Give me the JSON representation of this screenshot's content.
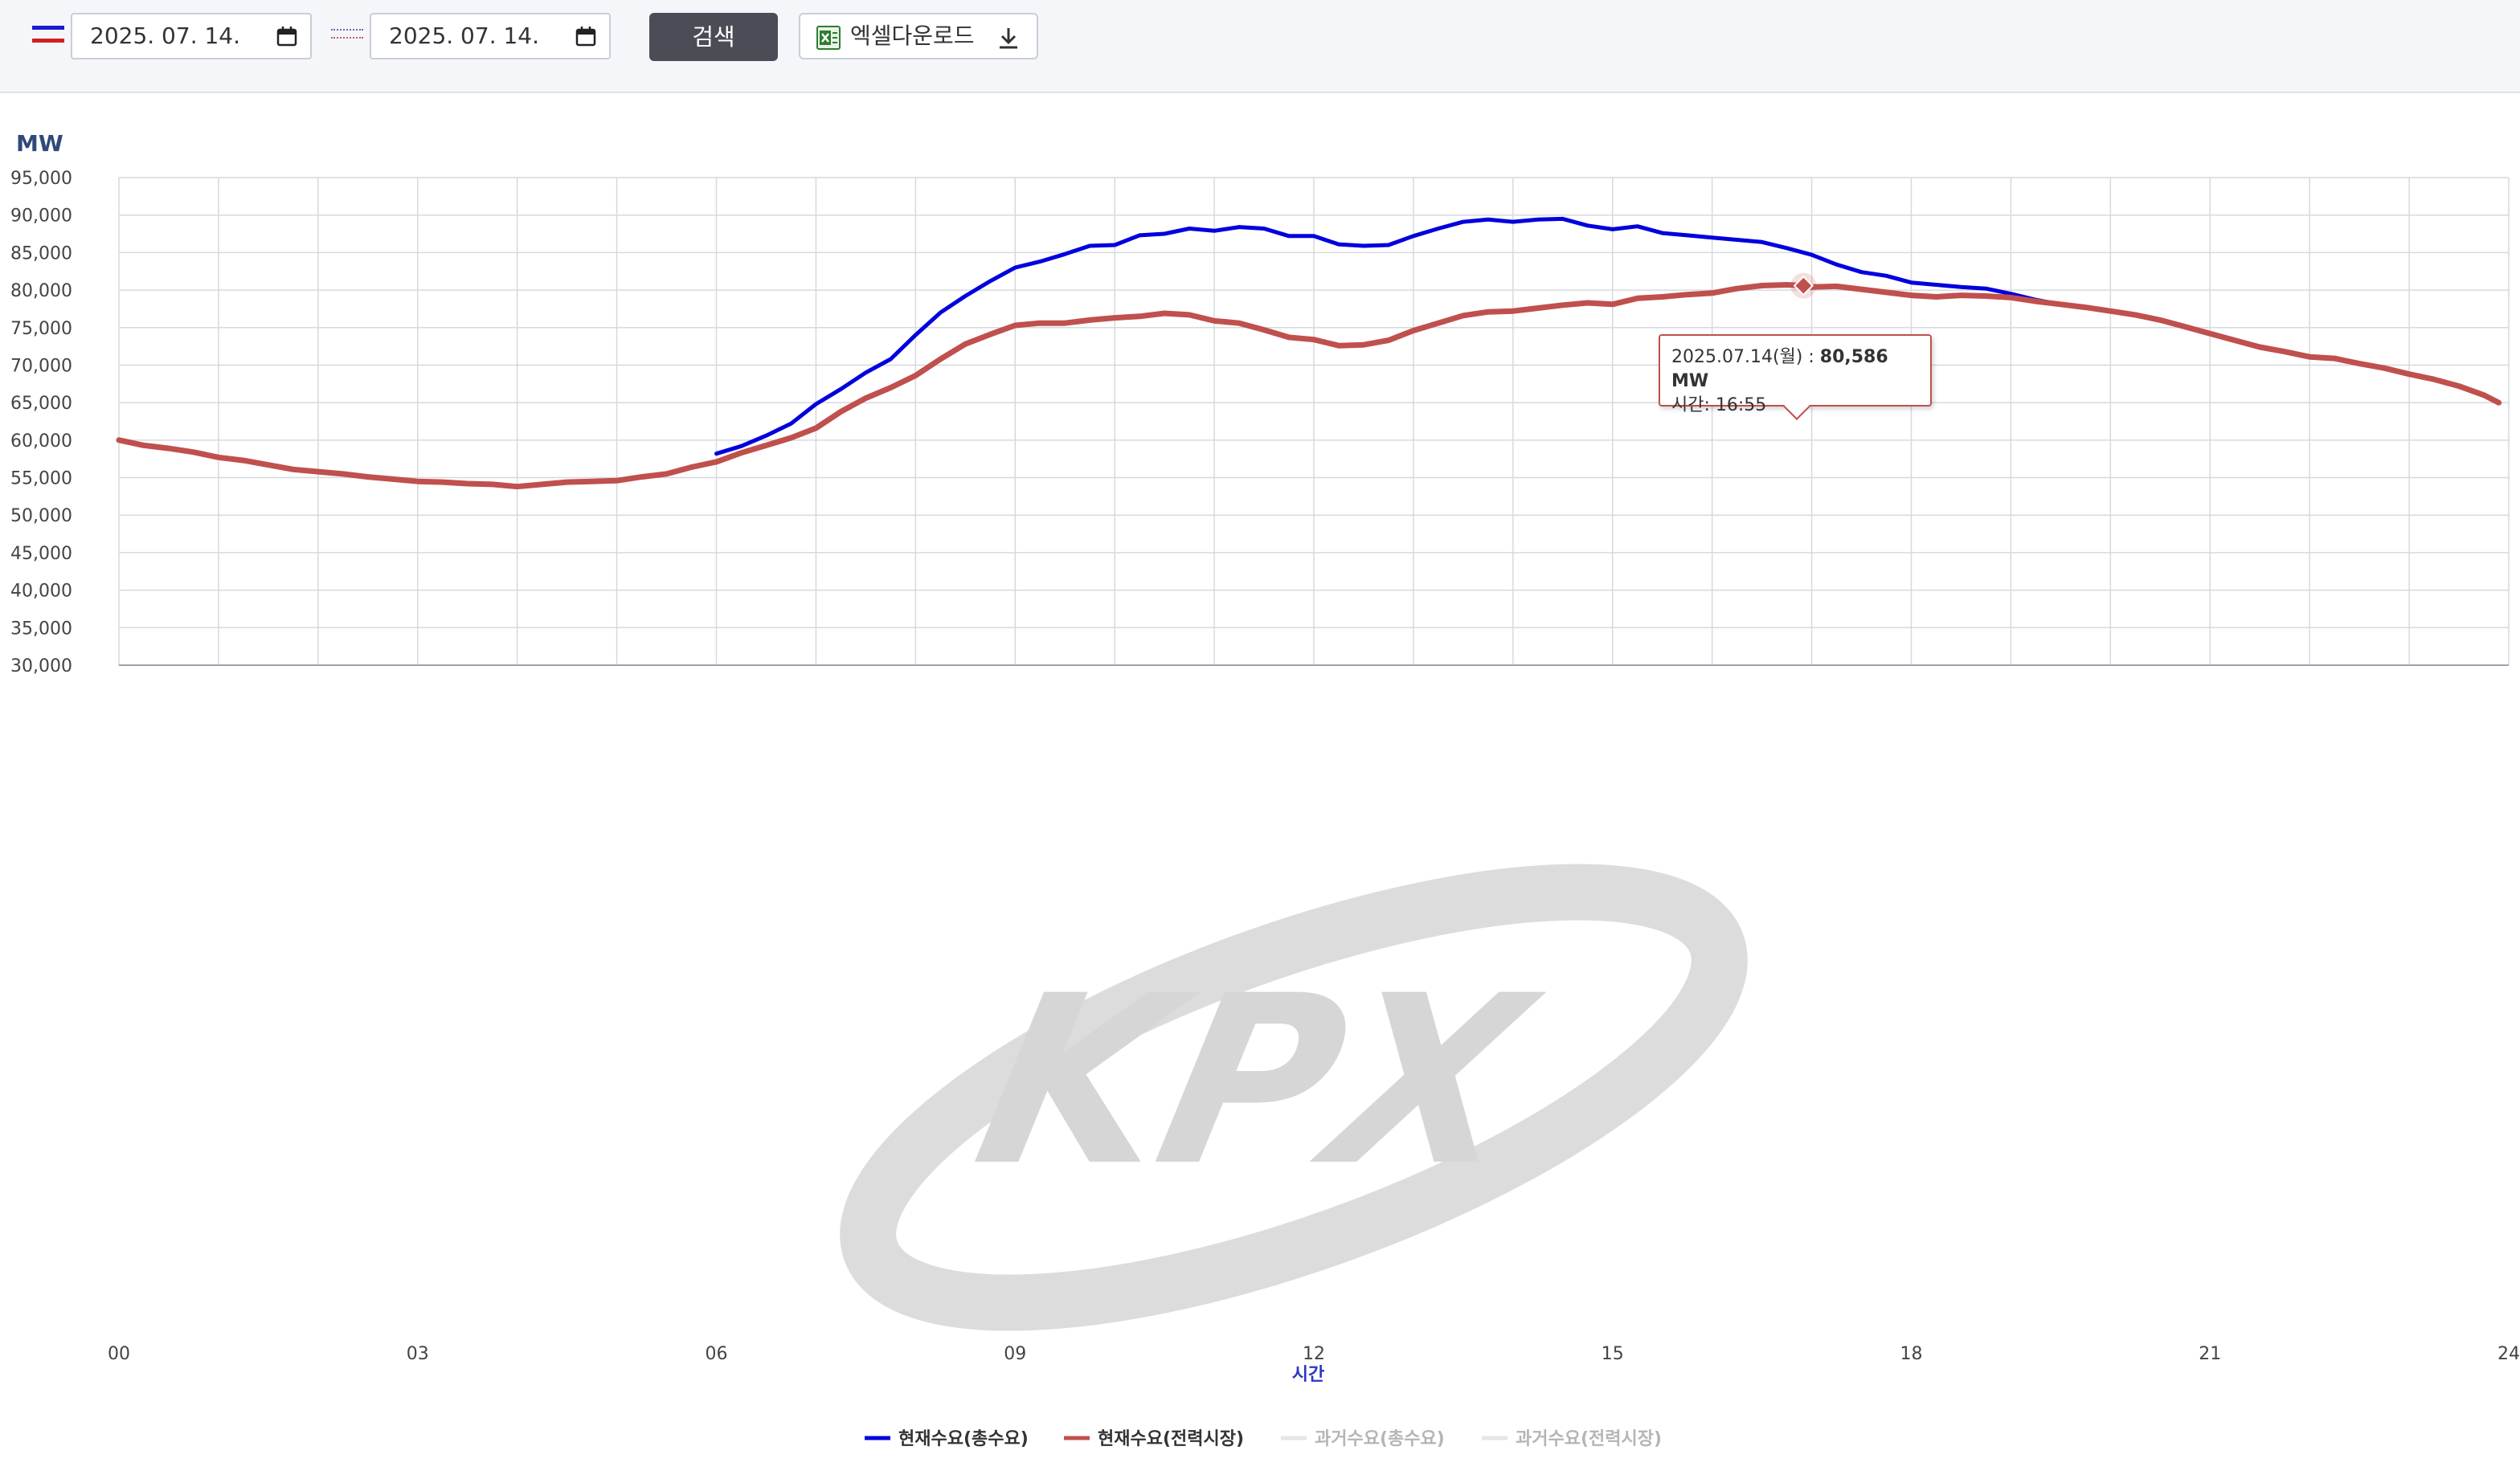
{
  "toolbar": {
    "date_from": "2025. 07. 14.",
    "date_to": "2025. 07. 14.",
    "search_label": "검색",
    "excel_label": "엑셀다운로드",
    "icons": [
      "calendar-icon",
      "excel-icon",
      "download-icon"
    ]
  },
  "colors": {
    "current_total": "#0000dd",
    "current_market": "#c0504d",
    "past_total": "#e0e0e0",
    "past_market": "#e0e0e0",
    "grid": "#d6d9de",
    "watermark": "#d9d9d9"
  },
  "watermark": "KPX",
  "tooltip": {
    "date": "2025.07.14(월) :",
    "value": "80,586 MW",
    "time": "시간: 16:55"
  },
  "chart_data": {
    "type": "line",
    "ylabel": "MW",
    "xlabel": "시간",
    "ylim": [
      30000,
      95000
    ],
    "xlim": [
      0,
      24
    ],
    "ytick_labels": [
      "95,000",
      "90,000",
      "85,000",
      "80,000",
      "75,000",
      "70,000",
      "65,000",
      "60,000",
      "55,000",
      "50,000",
      "45,000",
      "40,000",
      "35,000",
      "30,000"
    ],
    "ytick_values": [
      95000,
      90000,
      85000,
      80000,
      75000,
      70000,
      65000,
      60000,
      55000,
      50000,
      45000,
      40000,
      35000,
      30000
    ],
    "xtick_labels": [
      "00",
      "03",
      "06",
      "09",
      "12",
      "15",
      "18",
      "21",
      "24"
    ],
    "xtick_values": [
      0,
      3,
      6,
      9,
      12,
      15,
      18,
      21,
      24
    ],
    "grid": true,
    "legend_position": "bottom",
    "highlight": {
      "x": 16.917,
      "y": 80586
    },
    "series": [
      {
        "name": "현재수요(총수요)",
        "x": [
          6.0,
          6.25,
          6.5,
          6.75,
          7.0,
          7.25,
          7.5,
          7.75,
          8.0,
          8.25,
          8.5,
          8.75,
          9.0,
          9.25,
          9.5,
          9.75,
          10.0,
          10.25,
          10.5,
          10.75,
          11.0,
          11.25,
          11.5,
          11.75,
          12.0,
          12.25,
          12.5,
          12.75,
          13.0,
          13.25,
          13.5,
          13.75,
          14.0,
          14.25,
          14.5,
          14.75,
          15.0,
          15.25,
          15.5,
          15.75,
          16.0,
          16.25,
          16.5,
          16.75,
          17.0,
          17.25,
          17.5,
          17.75,
          18.0,
          18.25,
          18.5,
          18.75,
          19.0,
          19.25,
          19.5
        ],
        "values": [
          58200,
          59200,
          60600,
          62200,
          64800,
          66800,
          69000,
          70800,
          74000,
          77000,
          79200,
          81200,
          83000,
          83800,
          84800,
          85900,
          86000,
          87300,
          87500,
          88200,
          87900,
          88400,
          88200,
          87200,
          87200,
          86100,
          85900,
          86000,
          87200,
          88200,
          89100,
          89400,
          89100,
          89400,
          89500,
          88600,
          88100,
          88500,
          87600,
          87300,
          87000,
          86700,
          86400,
          85600,
          84700,
          83400,
          82400,
          81900,
          81000,
          80700,
          80400,
          80200,
          79500,
          78700,
          78100
        ]
      },
      {
        "name": "현재수요(전력시장)",
        "x": [
          0.0,
          0.25,
          0.5,
          0.75,
          1.0,
          1.25,
          1.5,
          1.75,
          2.0,
          2.25,
          2.5,
          2.75,
          3.0,
          3.25,
          3.5,
          3.75,
          4.0,
          4.25,
          4.5,
          4.75,
          5.0,
          5.25,
          5.5,
          5.75,
          6.0,
          6.25,
          6.5,
          6.75,
          7.0,
          7.25,
          7.5,
          7.75,
          8.0,
          8.25,
          8.5,
          8.75,
          9.0,
          9.25,
          9.5,
          9.75,
          10.0,
          10.25,
          10.5,
          10.75,
          11.0,
          11.25,
          11.5,
          11.75,
          12.0,
          12.25,
          12.5,
          12.75,
          13.0,
          13.25,
          13.5,
          13.75,
          14.0,
          14.25,
          14.5,
          14.75,
          15.0,
          15.25,
          15.5,
          15.75,
          16.0,
          16.25,
          16.5,
          16.75,
          16.917,
          17.0,
          17.25,
          17.5,
          17.75,
          18.0,
          18.25,
          18.5,
          18.75,
          19.0,
          19.25,
          19.5,
          19.75,
          20.0,
          20.25,
          20.5,
          20.75,
          21.0,
          21.25,
          21.5,
          21.75,
          22.0,
          22.25,
          22.5,
          22.75,
          23.0,
          23.25,
          23.5,
          23.75,
          23.9
        ],
        "values": [
          60000,
          59300,
          58900,
          58400,
          57700,
          57300,
          56700,
          56100,
          55800,
          55500,
          55100,
          54800,
          54500,
          54400,
          54200,
          54100,
          53800,
          54100,
          54400,
          54500,
          54600,
          55100,
          55500,
          56400,
          57100,
          58300,
          59300,
          60300,
          61600,
          63800,
          65600,
          67000,
          68600,
          70800,
          72800,
          74100,
          75300,
          75600,
          75600,
          76000,
          76300,
          76500,
          76900,
          76700,
          75900,
          75600,
          74700,
          73700,
          73400,
          72600,
          72700,
          73300,
          74600,
          75600,
          76600,
          77100,
          77200,
          77600,
          78000,
          78300,
          78100,
          78900,
          79100,
          79400,
          79600,
          80200,
          80600,
          80700,
          80586,
          80400,
          80500,
          80100,
          79700,
          79300,
          79100,
          79300,
          79200,
          79000,
          78500,
          78100,
          77700,
          77200,
          76700,
          76000,
          75100,
          74200,
          73300,
          72400,
          71800,
          71100,
          70900,
          70200,
          69600,
          68800,
          68100,
          67200,
          66000,
          65000
        ]
      },
      {
        "name": "과거수요(총수요)",
        "x": [],
        "values": []
      },
      {
        "name": "과거수요(전력시장)",
        "x": [],
        "values": []
      }
    ]
  }
}
